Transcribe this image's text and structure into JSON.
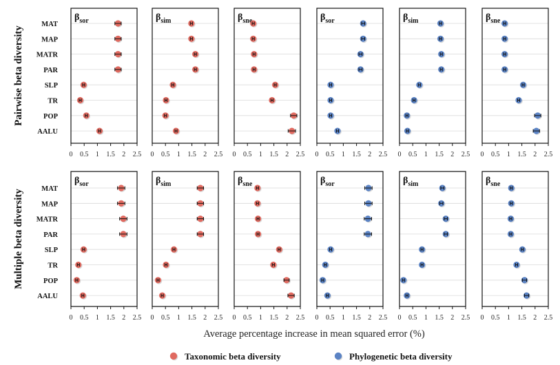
{
  "chart_data": {
    "type": "scatter",
    "variant": "dot-plot with error bars, 2 rows x 6 panels",
    "xlabel": "Average percentage increase in mean squared error (%)",
    "xlim": [
      0,
      2.5
    ],
    "xticks": [
      "0",
      "0.5",
      "1",
      "1.5",
      "2",
      "2.5"
    ],
    "categories": [
      "MAT",
      "MAP",
      "MATR",
      "PAR",
      "SLP",
      "TR",
      "POP",
      "AALU"
    ],
    "legend": [
      {
        "name": "Taxonomic beta diversity",
        "color": "#e06a60"
      },
      {
        "name": "Phylogenetic beta diversity",
        "color": "#5b83c4"
      }
    ],
    "rows": [
      {
        "label": "Pairwise beta diversity",
        "panels": [
          {
            "beta": "β",
            "sub": "sor",
            "group": "taxonomic",
            "values": [
              1.78,
              1.78,
              1.78,
              1.78,
              0.48,
              0.35,
              0.58,
              1.08
            ],
            "err": [
              0.12,
              0.12,
              0.12,
              0.12,
              0.04,
              0.04,
              0.04,
              0.04
            ]
          },
          {
            "beta": "β",
            "sub": "sim",
            "group": "taxonomic",
            "values": [
              1.48,
              1.48,
              1.63,
              1.63,
              0.78,
              0.52,
              0.5,
              0.9
            ],
            "err": [
              0.04,
              0.04,
              0.04,
              0.04,
              0.04,
              0.04,
              0.04,
              0.04
            ]
          },
          {
            "beta": "β",
            "sub": "sne",
            "group": "taxonomic",
            "values": [
              0.72,
              0.72,
              0.75,
              0.75,
              1.55,
              1.43,
              2.25,
              2.18
            ],
            "err": [
              0.04,
              0.04,
              0.04,
              0.04,
              0.04,
              0.04,
              0.12,
              0.14
            ]
          },
          {
            "beta": "β",
            "sub": "sor",
            "group": "phylogenetic",
            "values": [
              1.75,
              1.75,
              1.65,
              1.65,
              0.52,
              0.52,
              0.52,
              0.78
            ],
            "err": [
              0.06,
              0.06,
              0.06,
              0.06,
              0.04,
              0.04,
              0.04,
              0.04
            ]
          },
          {
            "beta": "β",
            "sub": "sim",
            "group": "phylogenetic",
            "values": [
              1.55,
              1.55,
              1.58,
              1.58,
              0.75,
              0.55,
              0.28,
              0.3
            ],
            "err": [
              0.04,
              0.04,
              0.04,
              0.04,
              0.04,
              0.04,
              0.04,
              0.04
            ]
          },
          {
            "beta": "β",
            "sub": "sne",
            "group": "phylogenetic",
            "values": [
              0.85,
              0.85,
              0.85,
              0.85,
              1.55,
              1.38,
              2.1,
              2.05
            ],
            "err": [
              0.04,
              0.04,
              0.04,
              0.04,
              0.04,
              0.04,
              0.12,
              0.12
            ]
          }
        ]
      },
      {
        "label": "Multiple beta diversity",
        "panels": [
          {
            "beta": "β",
            "sub": "sor",
            "group": "taxonomic",
            "values": [
              1.9,
              1.9,
              1.98,
              1.98,
              0.48,
              0.28,
              0.22,
              0.45
            ],
            "err": [
              0.14,
              0.14,
              0.14,
              0.14,
              0.04,
              0.04,
              0.04,
              0.04
            ]
          },
          {
            "beta": "β",
            "sub": "sim",
            "group": "taxonomic",
            "values": [
              1.82,
              1.82,
              1.82,
              1.82,
              0.82,
              0.52,
              0.22,
              0.38
            ],
            "err": [
              0.12,
              0.12,
              0.12,
              0.12,
              0.04,
              0.04,
              0.04,
              0.04
            ]
          },
          {
            "beta": "β",
            "sub": "sne",
            "group": "taxonomic",
            "values": [
              0.88,
              0.88,
              0.9,
              0.9,
              1.7,
              1.48,
              1.98,
              2.15
            ],
            "err": [
              0.04,
              0.04,
              0.04,
              0.04,
              0.04,
              0.04,
              0.1,
              0.12
            ]
          },
          {
            "beta": "β",
            "sub": "sor",
            "group": "phylogenetic",
            "values": [
              1.95,
              1.95,
              1.93,
              1.93,
              0.52,
              0.32,
              0.22,
              0.4
            ],
            "err": [
              0.14,
              0.14,
              0.14,
              0.14,
              0.04,
              0.04,
              0.04,
              0.04
            ]
          },
          {
            "beta": "β",
            "sub": "sim",
            "group": "phylogenetic",
            "values": [
              1.62,
              1.58,
              1.75,
              1.75,
              0.85,
              0.85,
              0.15,
              0.28
            ],
            "err": [
              0.06,
              0.06,
              0.06,
              0.06,
              0.04,
              0.04,
              0.04,
              0.04
            ]
          },
          {
            "beta": "β",
            "sub": "sne",
            "group": "phylogenetic",
            "values": [
              1.1,
              1.1,
              1.08,
              1.08,
              1.52,
              1.3,
              1.6,
              1.68
            ],
            "err": [
              0.04,
              0.04,
              0.04,
              0.04,
              0.04,
              0.04,
              0.08,
              0.08
            ]
          }
        ]
      }
    ]
  }
}
